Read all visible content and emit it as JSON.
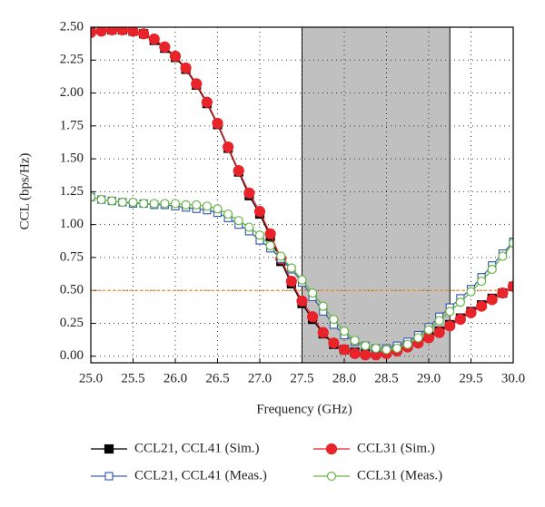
{
  "chart_data": {
    "type": "line",
    "x_label": "Frequency (GHz)",
    "y_label": "CCL (bps/Hz)",
    "x": [
      25.0,
      25.125,
      25.25,
      25.375,
      25.5,
      25.625,
      25.75,
      25.875,
      26.0,
      26.125,
      26.25,
      26.375,
      26.5,
      26.625,
      26.75,
      26.875,
      27.0,
      27.125,
      27.25,
      27.375,
      27.5,
      27.625,
      27.75,
      27.875,
      28.0,
      28.125,
      28.25,
      28.375,
      28.5,
      28.625,
      28.75,
      28.875,
      29.0,
      29.125,
      29.25,
      29.375,
      29.5,
      29.625,
      29.75,
      29.875,
      30.0
    ],
    "series": [
      {
        "name": "CCL21, CCL41 (Sim.)",
        "color": "#000000",
        "marker": "square-filled",
        "values": [
          2.47,
          2.48,
          2.48,
          2.48,
          2.47,
          2.45,
          2.4,
          2.34,
          2.27,
          2.18,
          2.06,
          1.92,
          1.76,
          1.58,
          1.4,
          1.22,
          1.08,
          0.91,
          0.72,
          0.55,
          0.4,
          0.28,
          0.17,
          0.09,
          0.05,
          0.03,
          0.02,
          0.02,
          0.03,
          0.05,
          0.08,
          0.11,
          0.15,
          0.19,
          0.24,
          0.29,
          0.34,
          0.39,
          0.44,
          0.48,
          0.53
        ]
      },
      {
        "name": "CCL31 (Sim.)",
        "color": "#e8232a",
        "marker": "circle-filled",
        "values": [
          2.46,
          2.47,
          2.48,
          2.48,
          2.47,
          2.45,
          2.41,
          2.35,
          2.28,
          2.19,
          2.07,
          1.93,
          1.77,
          1.59,
          1.41,
          1.24,
          1.1,
          0.93,
          0.74,
          0.57,
          0.42,
          0.3,
          0.18,
          0.1,
          0.05,
          0.02,
          0.01,
          0.01,
          0.02,
          0.04,
          0.07,
          0.1,
          0.14,
          0.18,
          0.23,
          0.28,
          0.33,
          0.38,
          0.43,
          0.48,
          0.53
        ]
      },
      {
        "name": "CCL21, CCL41 (Meas.)",
        "color": "#3e5fa8",
        "marker": "square-open",
        "values": [
          1.21,
          1.19,
          1.18,
          1.17,
          1.16,
          1.16,
          1.15,
          1.15,
          1.14,
          1.13,
          1.12,
          1.11,
          1.09,
          1.05,
          1.0,
          0.95,
          0.88,
          0.82,
          0.74,
          0.66,
          0.56,
          0.45,
          0.34,
          0.24,
          0.16,
          0.11,
          0.08,
          0.06,
          0.06,
          0.08,
          0.11,
          0.16,
          0.22,
          0.3,
          0.37,
          0.44,
          0.51,
          0.6,
          0.69,
          0.78,
          0.87
        ]
      },
      {
        "name": "CCL31 (Meas.)",
        "color": "#66b446",
        "marker": "circle-open",
        "values": [
          1.21,
          1.19,
          1.18,
          1.17,
          1.17,
          1.16,
          1.16,
          1.16,
          1.16,
          1.15,
          1.15,
          1.14,
          1.12,
          1.08,
          1.03,
          0.98,
          0.92,
          0.84,
          0.76,
          0.67,
          0.58,
          0.48,
          0.38,
          0.28,
          0.19,
          0.12,
          0.08,
          0.06,
          0.05,
          0.06,
          0.09,
          0.14,
          0.2,
          0.27,
          0.34,
          0.41,
          0.49,
          0.57,
          0.66,
          0.76,
          0.86
        ]
      }
    ],
    "shaded_region": [
      27.5,
      29.25
    ],
    "shaded_color": "#c0c0c0",
    "threshold": 0.5,
    "threshold_color": "#f08a24",
    "xlim": [
      25,
      30
    ],
    "ylim": [
      -0.05,
      2.5
    ],
    "xticks": [
      {
        "value": 25,
        "label": "25.0"
      },
      25.5,
      {
        "value": 26,
        "label": "26.0"
      },
      26.5,
      {
        "value": 27,
        "label": "27.0"
      },
      27.5,
      {
        "value": 28,
        "label": "28.0"
      },
      28.5,
      {
        "value": 29,
        "label": "29.0"
      },
      29.5,
      {
        "value": 30,
        "label": "30.0"
      }
    ],
    "yticks": [
      {
        "value": 0,
        "label": "0.00"
      },
      0.25,
      {
        "value": 0.5,
        "label": "0.50"
      },
      0.75,
      {
        "value": 1,
        "label": "1.00"
      },
      1.25,
      {
        "value": 1.5,
        "label": "1.50"
      },
      1.75,
      {
        "value": 2,
        "label": "2.00"
      },
      2.25,
      {
        "value": 2.5,
        "label": "2.50"
      }
    ],
    "grid": true,
    "legend": "bottom"
  }
}
